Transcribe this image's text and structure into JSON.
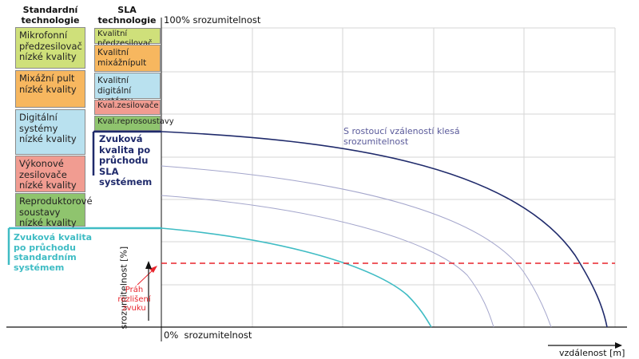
{
  "headers": {
    "standard": "Standardní technologie",
    "sla": "SLA technologie"
  },
  "standard_chain": [
    {
      "label": "Mikrofonní předzesilovač nízké kvality",
      "color": "#cfe07a"
    },
    {
      "label": "Mixážní pult nízké kvality",
      "color": "#f7b75f"
    },
    {
      "label": "Digitální systémy nízké kvality",
      "color": "#b9e1ef"
    },
    {
      "label": "Výkonové zesilovače nízké kvality",
      "color": "#f19c91"
    },
    {
      "label": "Reproduktorové soustavy nízké kvality",
      "color": "#8fc46e"
    }
  ],
  "sla_chain": [
    {
      "label": "Kvalitní předzesilovač",
      "color": "#cfe07a"
    },
    {
      "label": "Kvalitní mixážnípult",
      "color": "#f7b75f"
    },
    {
      "label": "Kvalitní digitální systémy",
      "color": "#b9e1ef"
    },
    {
      "label": "Kval.zesilovače",
      "color": "#f19c91"
    },
    {
      "label": "Kval.reprosoustavy",
      "color": "#8fc46e"
    }
  ],
  "labels": {
    "top_axis": "100% srozumitelnost",
    "bottom_axis": "0%  srozumitelnost",
    "y_axis": "srozumitelnost [%]",
    "x_axis": "vzdálenost [m]",
    "sla_quality": "Zvuková kvalita po průchodu SLA systémem",
    "standard_quality": "Zvuková kvalita po průchodu standardním systémem",
    "threshold": "Práh rozlišení zvuku",
    "curve_note": "S rostoucí vzáleností klesá srozumitelnost"
  },
  "colors": {
    "sla_curve": "#1f2a6b",
    "standard_curve": "#3fbcc4",
    "mid_curve": "#a4a6cc",
    "threshold": "#e8242c",
    "note_text": "#5a5a9a"
  }
}
